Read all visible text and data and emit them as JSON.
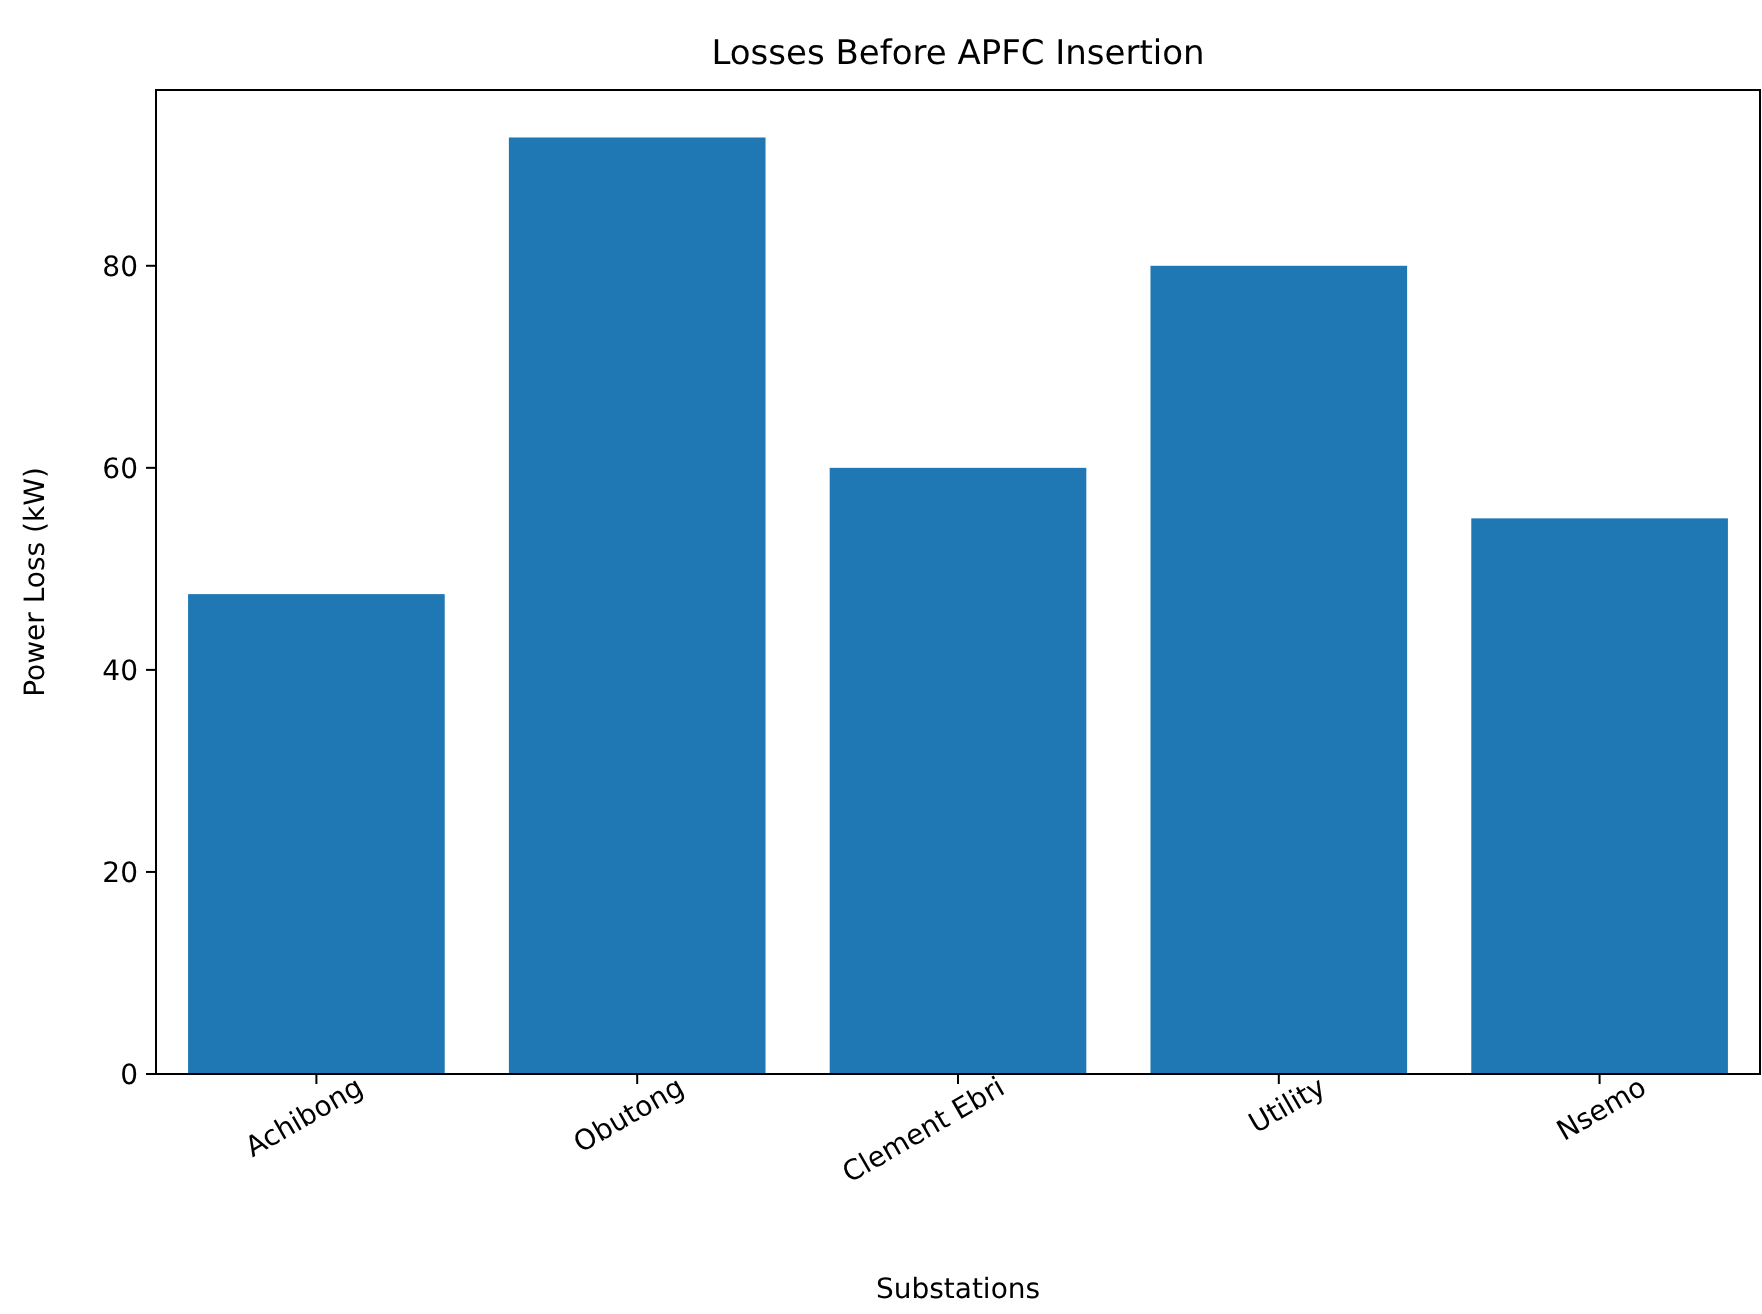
{
  "chart_data": {
    "type": "bar",
    "title": "Losses Before APFC Insertion",
    "xlabel": "Substations",
    "ylabel": "Power Loss (kW)",
    "categories": [
      "Achibong",
      "Obutong",
      "Clement Ebri",
      "Utility",
      "Nsemo"
    ],
    "values": [
      47.5,
      92.7,
      60,
      80,
      55
    ],
    "color": "#1f77b4",
    "ylim": [
      0,
      97.4
    ],
    "yticks": [
      0,
      20,
      40,
      60,
      80
    ],
    "grid": false
  }
}
